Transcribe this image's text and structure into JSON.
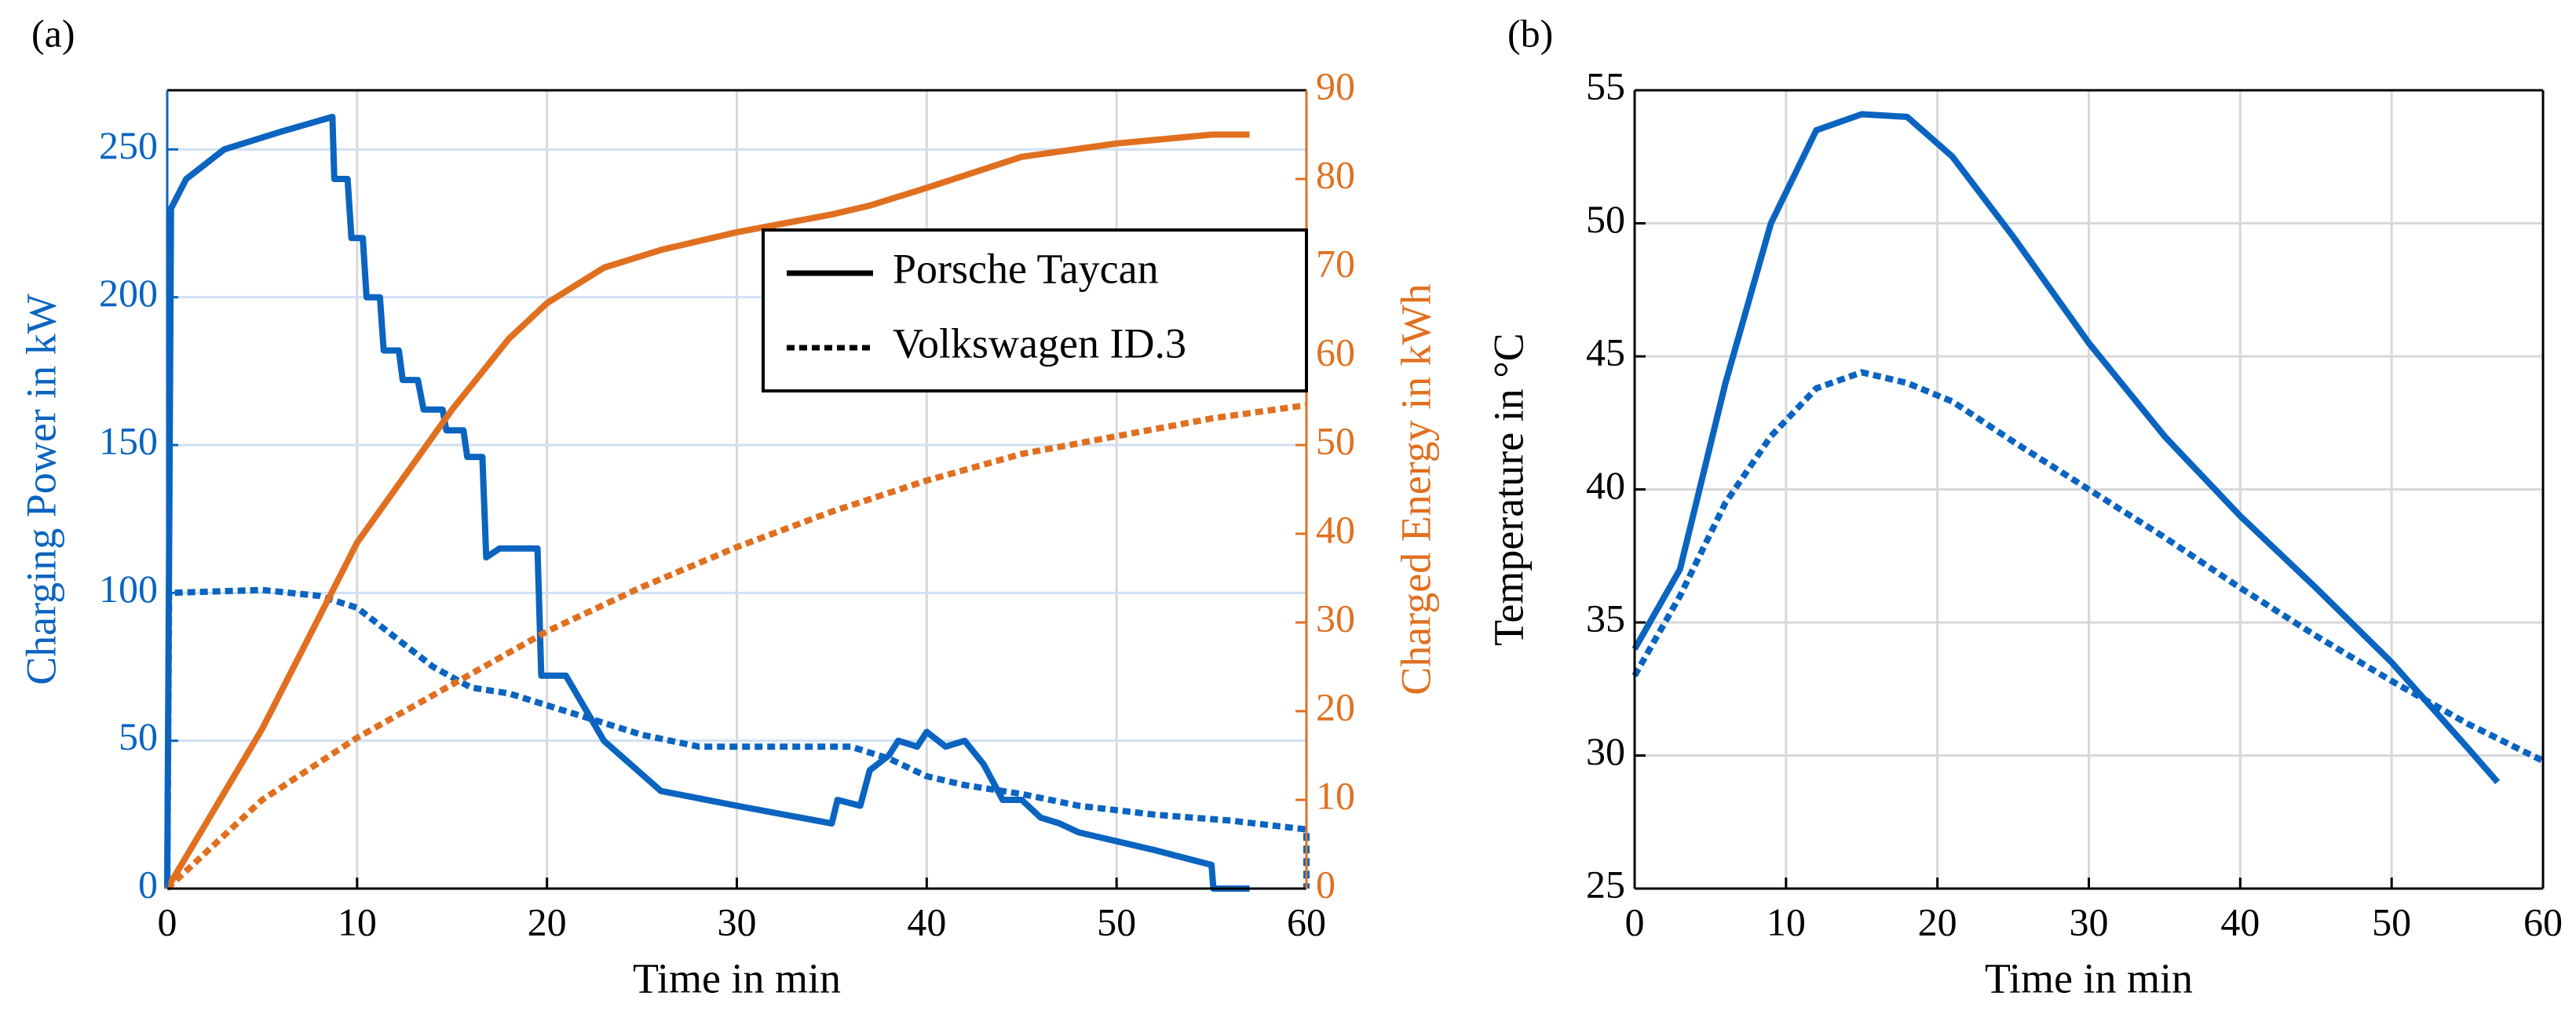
{
  "chart_data": [
    {
      "type": "line",
      "label": "(a)",
      "xlabel": "Time in min",
      "ylabel": "Charging Power in kW",
      "y2label": "Charged Energy in kWh",
      "xlim": [
        0,
        60
      ],
      "xticks": [
        0,
        10,
        20,
        30,
        40,
        50,
        60
      ],
      "ylim": [
        0,
        270
      ],
      "yticks": [
        0,
        50,
        100,
        150,
        200,
        250
      ],
      "y2lim": [
        0,
        90
      ],
      "y2ticks": [
        0,
        10,
        20,
        30,
        40,
        50,
        60,
        70,
        80,
        90
      ],
      "ycolor": "#0a64c0",
      "y2color": "#e07020",
      "grid": true,
      "legend_loc": "upper right",
      "legend": [
        {
          "name": "Porsche Taycan",
          "dash": "solid"
        },
        {
          "name": "Volkswagen ID.3",
          "dash": "dashed"
        }
      ],
      "series": [
        {
          "color": "#0a64c0",
          "dash": "solid",
          "axis": "y",
          "x": [
            0,
            0.2,
            1,
            3,
            6,
            8.7,
            8.8,
            9.5,
            9.7,
            10.3,
            10.5,
            11.2,
            11.4,
            12.2,
            12.4,
            13.2,
            13.5,
            14.5,
            14.7,
            15.6,
            15.8,
            16.6,
            16.8,
            17.5,
            19.5,
            19.7,
            21,
            23,
            26,
            30,
            35,
            35.3,
            36.5,
            37,
            38,
            38.5,
            39.5,
            40,
            41,
            42,
            43,
            44,
            45,
            46,
            47,
            48,
            50,
            52,
            55,
            55.1,
            57
          ],
          "values": [
            0,
            230,
            240,
            250,
            256,
            261,
            240,
            240,
            220,
            220,
            200,
            200,
            182,
            182,
            172,
            172,
            162,
            162,
            155,
            155,
            146,
            146,
            112,
            115,
            115,
            72,
            72,
            50,
            33,
            28,
            22,
            30,
            28,
            40,
            45,
            50,
            48,
            53,
            48,
            50,
            42,
            30,
            30,
            24,
            22,
            19,
            16,
            13,
            8,
            0,
            0
          ]
        },
        {
          "color": "#0a64c0",
          "dash": "dashed",
          "axis": "y",
          "x": [
            0,
            0.1,
            5,
            8,
            10,
            12,
            14,
            16,
            18,
            20,
            22,
            25,
            28,
            32,
            36,
            38,
            40,
            42,
            45,
            48,
            52,
            56,
            60,
            60
          ],
          "values": [
            0,
            100,
            101,
            99,
            95,
            85,
            75,
            68,
            66,
            62,
            58,
            52,
            48,
            48,
            48,
            44,
            38,
            35,
            32,
            28,
            25,
            23,
            20,
            0
          ]
        },
        {
          "color": "#e07020",
          "dash": "solid",
          "axis": "y2",
          "x": [
            0,
            5,
            10,
            15,
            18,
            20,
            23,
            26,
            30,
            35,
            37,
            40,
            45,
            50,
            55,
            57
          ],
          "values": [
            0,
            18,
            39,
            54,
            62,
            66,
            70,
            72,
            74,
            76,
            77,
            79,
            82.5,
            84,
            85,
            85
          ]
        },
        {
          "color": "#e07020",
          "dash": "dashed",
          "axis": "y2",
          "x": [
            0,
            5,
            10,
            15,
            20,
            25,
            30,
            35,
            40,
            45,
            50,
            55,
            60
          ],
          "values": [
            0,
            10,
            17,
            23,
            29,
            34,
            38.5,
            42.5,
            46,
            49,
            51,
            53,
            54.5
          ]
        }
      ]
    },
    {
      "type": "line",
      "label": "(b)",
      "xlabel": "Time in min",
      "ylabel": "Temperature in °C",
      "xlim": [
        0,
        60
      ],
      "xticks": [
        0,
        10,
        20,
        30,
        40,
        50,
        60
      ],
      "ylim": [
        25,
        55
      ],
      "yticks": [
        25,
        30,
        35,
        40,
        45,
        50,
        55
      ],
      "ycolor": "#000000",
      "grid": true,
      "series": [
        {
          "color": "#0a64c0",
          "dash": "solid",
          "axis": "y",
          "x": [
            0,
            3,
            6,
            9,
            12,
            15,
            18,
            21,
            25,
            30,
            35,
            40,
            45,
            50,
            55,
            57
          ],
          "values": [
            34,
            37,
            44,
            50,
            53.5,
            54.1,
            54,
            52.5,
            49.5,
            45.5,
            42,
            39,
            36.3,
            33.5,
            30.3,
            29
          ]
        },
        {
          "color": "#0a64c0",
          "dash": "dashed",
          "axis": "y",
          "x": [
            0,
            3,
            6,
            9,
            12,
            15,
            18,
            21,
            25,
            30,
            35,
            40,
            45,
            50,
            55,
            60
          ],
          "values": [
            33,
            36,
            39.5,
            42,
            43.8,
            44.4,
            44,
            43.3,
            41.8,
            40,
            38.2,
            36.3,
            34.5,
            32.8,
            31.2,
            29.8
          ]
        }
      ]
    }
  ]
}
